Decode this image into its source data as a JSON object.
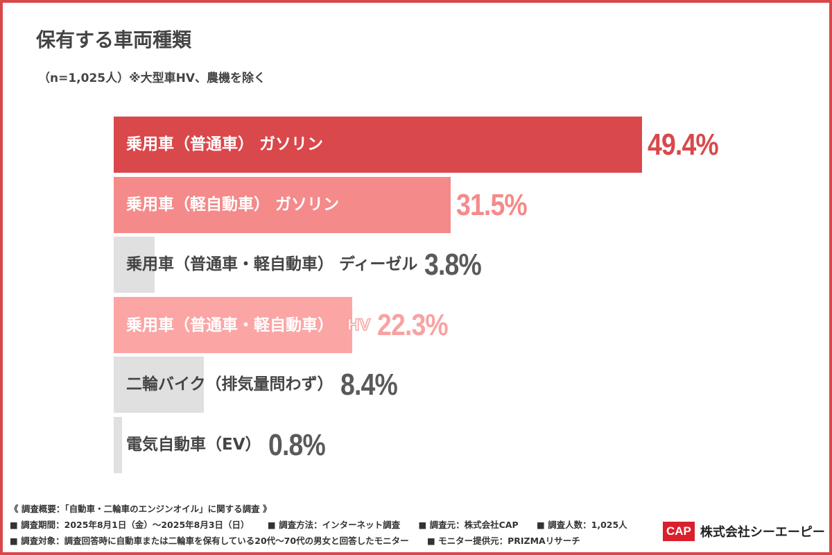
{
  "title": "保有する車両種類",
  "subtitle": "（n=1,025人）※大型車HV、農機を除く",
  "chart_data": {
    "type": "bar",
    "orientation": "horizontal",
    "unit": "%",
    "categories": [
      "乗用車（普通車） ガソリン",
      "乗用車（軽自動車） ガソリン",
      "乗用車（普通車・軽自動車） ディーゼル",
      "乗用車（普通車・軽自動車）",
      "二輪バイク（排気量問わず）",
      "電気自動車（EV）"
    ],
    "values": [
      49.4,
      31.5,
      3.8,
      22.3,
      8.4,
      0.8
    ],
    "value_labels": [
      "49.4%",
      "31.5%",
      "3.8%",
      "22.3%",
      "8.4%",
      "0.8%"
    ],
    "extra_tags": [
      "",
      "",
      "",
      "HV",
      "",
      ""
    ],
    "bar_colors": [
      "#d9484b",
      "#f48a8a",
      "#e0e0e0",
      "#fba5a5",
      "#e0e0e0",
      "#e0e0e0"
    ],
    "label_colors": [
      "#ffffff",
      "#ffffff",
      "#444444",
      "#ffffff",
      "#444444",
      "#444444"
    ],
    "value_colors": [
      "#d9484b",
      "#f48a8a",
      "#5a5a5a",
      "#f9a2a2",
      "#5a5a5a",
      "#5a5a5a"
    ],
    "grid": false
  },
  "footer": {
    "overview": "《 調査概要：「自動車・二輪車のエンジンオイル」に関する調査 》",
    "line1": [
      "■ 調査期間：2025年8月1日（金）～2025年8月3日（日）",
      "■ 調査方法：インターネット調査",
      "■ 調査元：株式会社CAP",
      "■ 調査人数：1,025人"
    ],
    "line2": [
      "■ 調査対象：調査回答時に自動車または二輪車を保有している20代～70代の男女と回答したモニター",
      "■ モニター提供元：PRIZMAリサーチ"
    ]
  },
  "logo": {
    "mark": "CAP",
    "name": "株式会社シーエーピー"
  }
}
